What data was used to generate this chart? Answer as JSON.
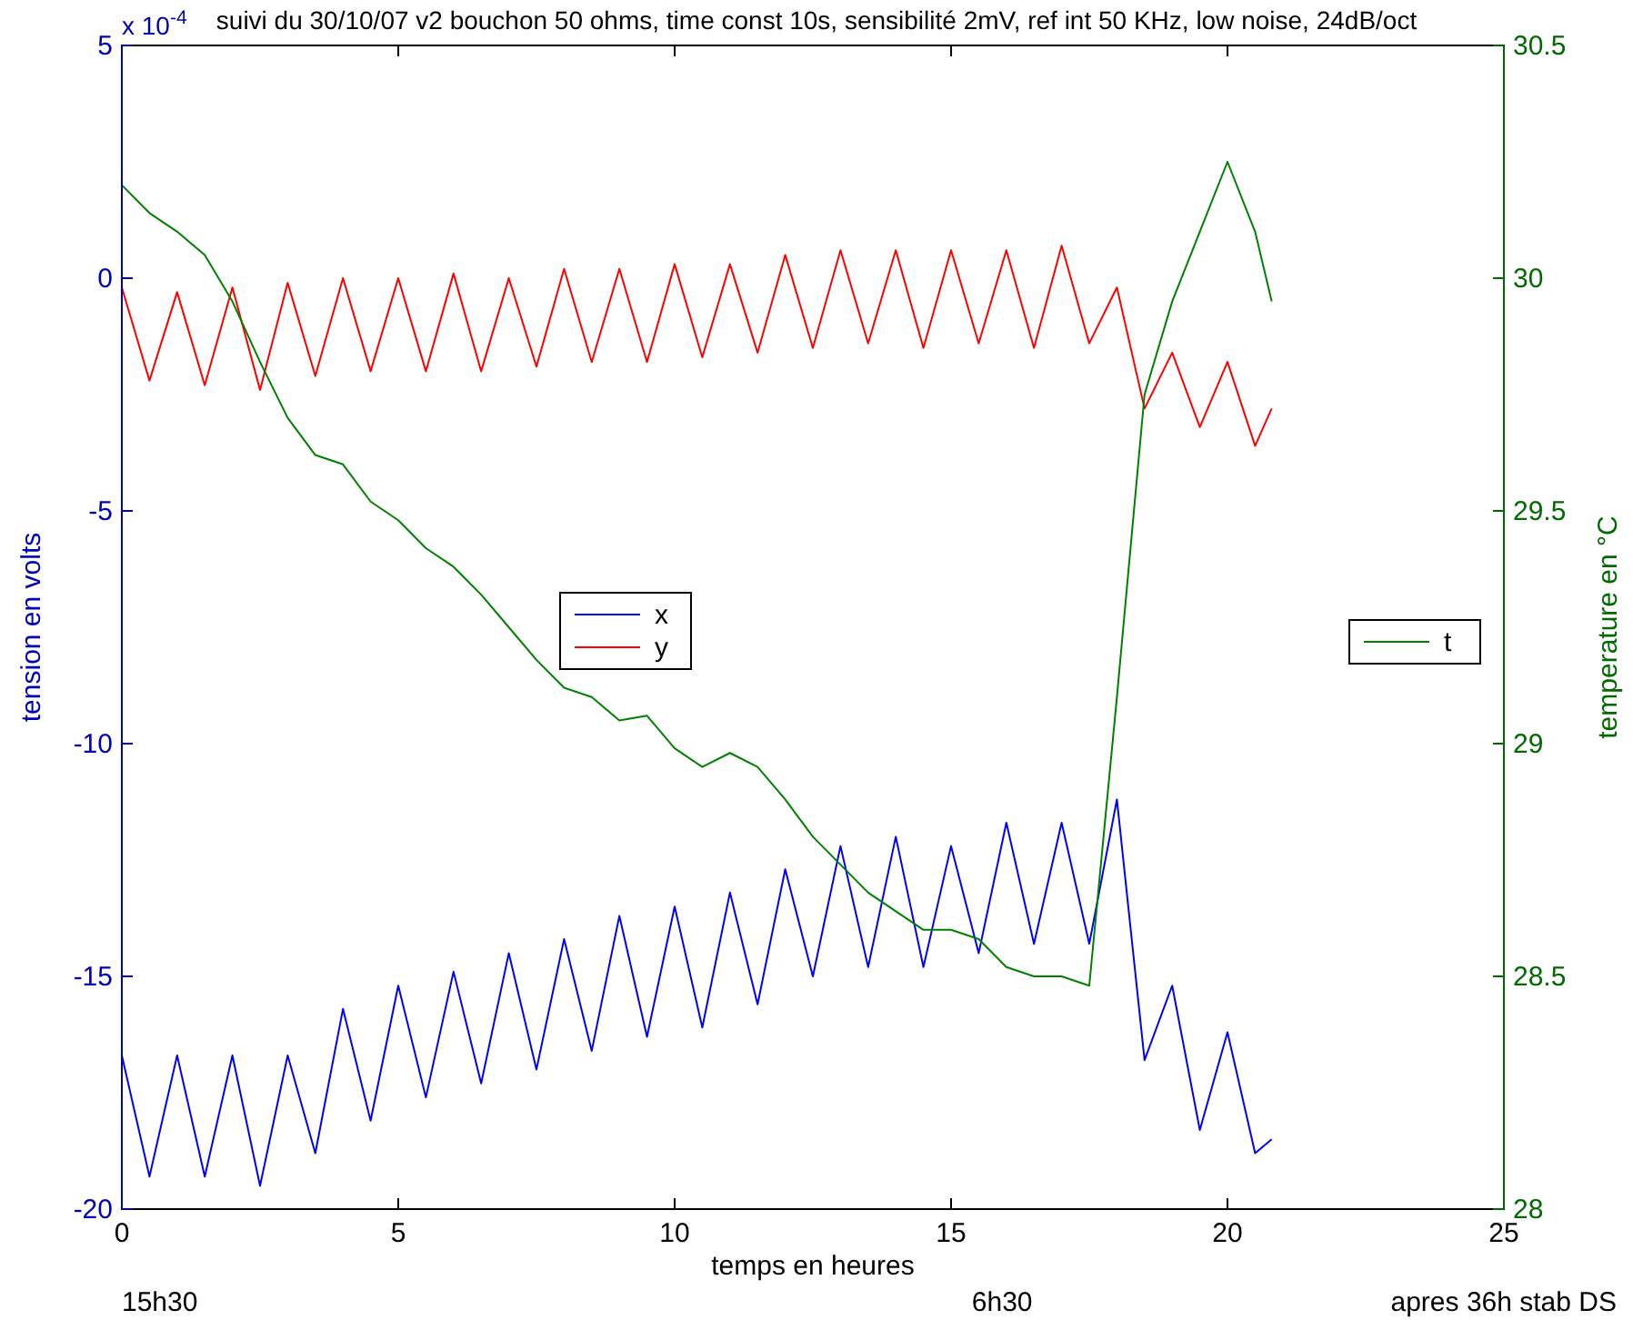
{
  "chart_data": {
    "type": "line",
    "title": "suivi du 30/10/07 v2 bouchon 50 ohms, time const 10s, sensibilité 2mV, ref int 50 KHz, low noise, 24dB/oct",
    "xlabel": "temps en heures",
    "ylabel": "tension en volts",
    "y2label": "temperature en °C",
    "annotations": [
      "x 10$^{-4}$",
      "15h30",
      "6h30",
      "apres 36h stab DS"
    ],
    "x": [
      0,
      0.5,
      1,
      1.5,
      2,
      2.5,
      3,
      3.5,
      4,
      4.5,
      5,
      5.5,
      6,
      6.5,
      7,
      7.5,
      8,
      8.5,
      9,
      9.5,
      10,
      10.5,
      11,
      11.5,
      12,
      12.5,
      13,
      13.5,
      14,
      14.5,
      15,
      15.5,
      16,
      16.5,
      17,
      17.5,
      18,
      18.5,
      19,
      19.5,
      20,
      20.5,
      20.8
    ],
    "xlim": [
      0,
      25
    ],
    "xticks": [
      0,
      5,
      10,
      15,
      20,
      25
    ],
    "ylim": [
      -20,
      5
    ],
    "yticks": [
      -20,
      -15,
      -10,
      -5,
      0,
      5
    ],
    "y2lim": [
      28,
      30.5
    ],
    "y2ticks": [
      28,
      28.5,
      29,
      29.5,
      30,
      30.5
    ],
    "legend": "center",
    "grid": false,
    "series": [
      {
        "name": "x",
        "color": "#0000ff",
        "values": [
          -16.7,
          -19.3,
          -16.7,
          -19.3,
          -16.7,
          -19.5,
          -16.7,
          -18.8,
          -15.7,
          -18.1,
          -15.2,
          -17.6,
          -14.9,
          -17.3,
          -14.5,
          -17,
          -14.2,
          -16.6,
          -13.7,
          -16.3,
          -13.5,
          -16.1,
          -13.2,
          -15.6,
          -12.7,
          -15,
          -12.2,
          -14.8,
          -12,
          -14.8,
          -12.2,
          -14.5,
          -11.7,
          -14.3,
          -11.7,
          -14.3,
          -11.2,
          -16.8,
          -15.2,
          -18.3,
          -16.2,
          -18.8,
          -18.5
        ]
      },
      {
        "name": "y",
        "color": "#ff0000",
        "values": [
          -0.2,
          -2.2,
          -0.3,
          -2.3,
          -0.2,
          -2.4,
          -0.1,
          -2.1,
          0,
          -2,
          0,
          -2,
          0.1,
          -2,
          0,
          -1.9,
          0.2,
          -1.8,
          0.2,
          -1.8,
          0.3,
          -1.7,
          0.3,
          -1.6,
          0.5,
          -1.5,
          0.6,
          -1.4,
          0.6,
          -1.5,
          0.6,
          -1.4,
          0.6,
          -1.5,
          0.7,
          -1.4,
          -0.2,
          -2.8,
          -1.6,
          -3.2,
          -1.8,
          -3.6,
          -2.8
        ]
      },
      {
        "name": "t",
        "color": "#008000",
        "axis": "y2",
        "values": [
          30.2,
          30.14,
          30.1,
          30.05,
          29.95,
          29.82,
          29.7,
          29.62,
          29.6,
          29.52,
          29.48,
          29.42,
          29.38,
          29.32,
          29.25,
          29.18,
          29.12,
          29.1,
          29.05,
          29.06,
          28.99,
          28.95,
          28.98,
          28.95,
          28.88,
          28.8,
          28.74,
          28.68,
          28.64,
          28.6,
          28.6,
          28.58,
          28.52,
          28.5,
          28.5,
          28.48,
          29.1,
          29.75,
          29.95,
          30.1,
          30.25,
          30.1,
          29.95
        ]
      }
    ]
  }
}
